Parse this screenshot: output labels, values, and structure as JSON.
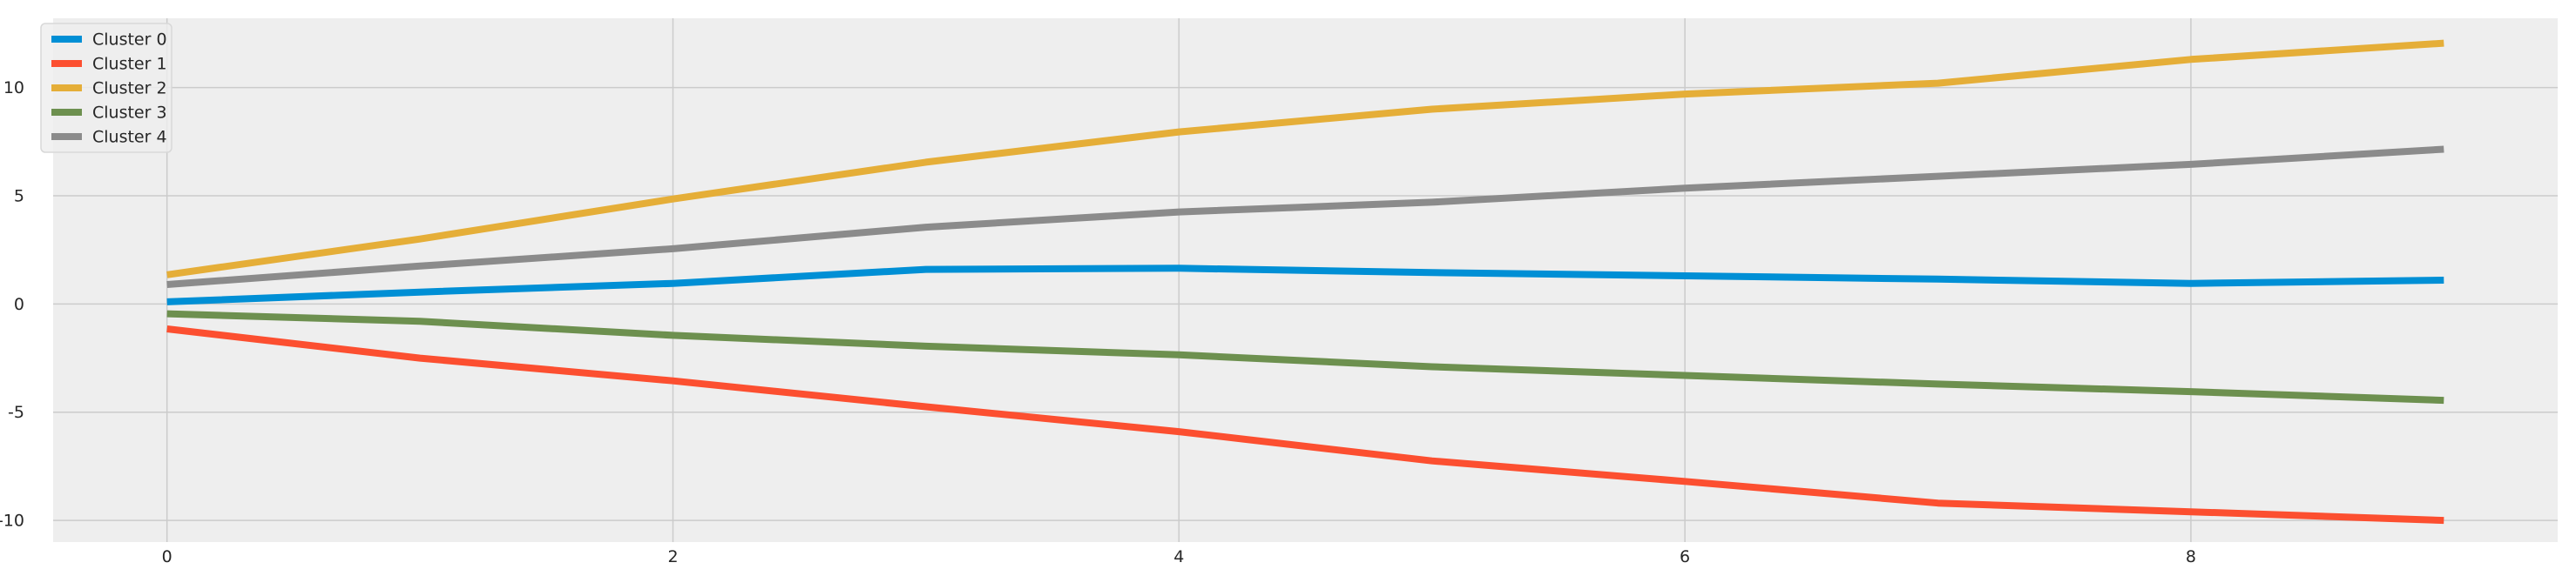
{
  "chart_data": {
    "type": "line",
    "title": "",
    "xlabel": "",
    "ylabel": "",
    "xlim": [
      -0.45,
      9.45
    ],
    "ylim": [
      -11.0,
      13.2
    ],
    "grid": true,
    "legend_position": "top-left",
    "x": [
      0,
      1,
      2,
      3,
      4,
      5,
      6,
      7,
      8,
      9
    ],
    "xticks": [
      0,
      2,
      4,
      6,
      8
    ],
    "yticks": [
      -10,
      -5,
      0,
      5,
      10
    ],
    "xtick_labels": [
      "0",
      "2",
      "4",
      "6",
      "8"
    ],
    "ytick_labels": [
      "-10",
      "-5",
      "0",
      "5",
      "10"
    ],
    "series": [
      {
        "name": "Cluster 0",
        "color": "#008fd5",
        "values": [
          0.1,
          0.55,
          0.95,
          1.6,
          1.65,
          1.45,
          1.3,
          1.15,
          0.95,
          1.1
        ]
      },
      {
        "name": "Cluster 1",
        "color": "#fc4f30",
        "values": [
          -1.15,
          -2.5,
          -3.55,
          -4.75,
          -5.9,
          -7.25,
          -8.2,
          -9.2,
          -9.6,
          -10.0
        ]
      },
      {
        "name": "Cluster 2",
        "color": "#e5ae38",
        "values": [
          1.35,
          3.0,
          4.85,
          6.55,
          7.95,
          9.0,
          9.7,
          10.2,
          11.3,
          12.05
        ]
      },
      {
        "name": "Cluster 3",
        "color": "#6d904f",
        "values": [
          -0.45,
          -0.8,
          -1.45,
          -1.95,
          -2.35,
          -2.9,
          -3.3,
          -3.7,
          -4.05,
          -4.45
        ]
      },
      {
        "name": "Cluster 4",
        "color": "#8b8b8b",
        "values": [
          0.9,
          1.75,
          2.55,
          3.55,
          4.25,
          4.7,
          5.35,
          5.9,
          6.45,
          7.15
        ]
      }
    ]
  }
}
